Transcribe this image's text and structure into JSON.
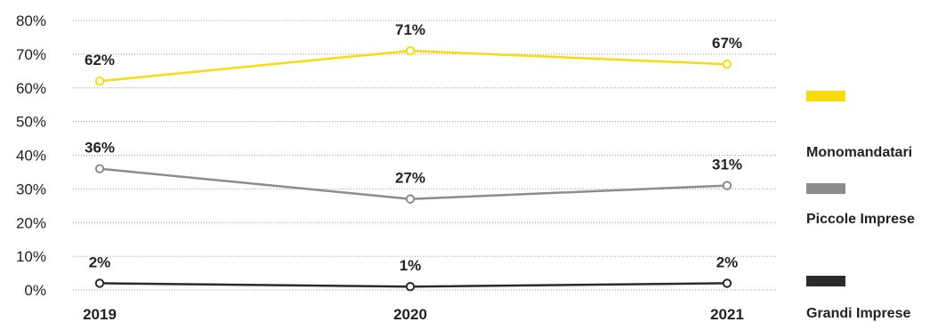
{
  "chart_data": {
    "type": "line",
    "categories": [
      "2019",
      "2020",
      "2021"
    ],
    "series": [
      {
        "name": "Monomandatari",
        "values": [
          62,
          71,
          67
        ],
        "labels": [
          "62%",
          "71%",
          "67%"
        ],
        "color": "#f5dc0a"
      },
      {
        "name": "Piccole Imprese",
        "values": [
          36,
          27,
          31
        ],
        "labels": [
          "36%",
          "27%",
          "31%"
        ],
        "color": "#8c8c8c"
      },
      {
        "name": "Grandi Imprese",
        "values": [
          2,
          1,
          2
        ],
        "labels": [
          "2%",
          "1%",
          "2%"
        ],
        "color": "#2b2b2b"
      }
    ],
    "yticks": [
      {
        "value": 0,
        "label": "0%"
      },
      {
        "value": 10,
        "label": "10%"
      },
      {
        "value": 20,
        "label": "20%"
      },
      {
        "value": 30,
        "label": "30%"
      },
      {
        "value": 40,
        "label": "40%"
      },
      {
        "value": 50,
        "label": "50%"
      },
      {
        "value": 60,
        "label": "60%"
      },
      {
        "value": 70,
        "label": "70%"
      },
      {
        "value": 80,
        "label": "80%"
      }
    ],
    "ylim": [
      0,
      80
    ],
    "grid": true,
    "legend_position": "right",
    "title": "",
    "xlabel": "",
    "ylabel": ""
  }
}
